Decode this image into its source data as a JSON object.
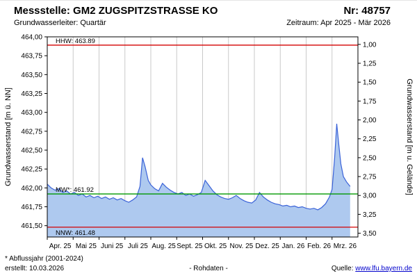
{
  "header": {
    "station": "Messstelle: GM2 ZUGSPITZSTRASSE KO",
    "number": "Nr: 48757",
    "aquifer": "Grundwasserleiter: Quartär",
    "period": "Zeitraum: Apr 2025 - Mär 2026"
  },
  "chart_data": {
    "type": "area",
    "ylabel_left": "Grundwasserstand [m ü. NN]",
    "ylabel_right": "Grundwasserstand [m u. Gelände]",
    "x_tick_labels": [
      "Apr. 25",
      "Mai 25",
      "Juni 25",
      "Juli 25",
      "Aug. 25",
      "Sept. 25",
      "Okt. 25",
      "Nov. 25",
      "Dez. 25",
      "Jan. 26",
      "Feb. 26",
      "Mrz. 26"
    ],
    "x_range_months": [
      0,
      12
    ],
    "y_left_range": [
      461.35,
      464.0
    ],
    "y_left_tick_values": [
      464.0,
      463.75,
      463.5,
      463.25,
      463.0,
      462.75,
      462.5,
      462.25,
      462.0,
      461.75,
      461.5
    ],
    "y_left_tick_labels": [
      "464,00",
      "463,75",
      "463,50",
      "463,25",
      "463,00",
      "462,75",
      "462,50",
      "462,25",
      "462,00",
      "461,75",
      "461,50"
    ],
    "y_right_tick_values": [
      1.0,
      1.25,
      1.5,
      1.75,
      2.0,
      2.25,
      2.5,
      2.75,
      3.0,
      3.25,
      3.5
    ],
    "y_right_tick_labels": [
      "1,00",
      "1,25",
      "1,50",
      "1,75",
      "2,00",
      "2,25",
      "2,50",
      "2,75",
      "3,00",
      "3,25",
      "3,50"
    ],
    "right_axis_ground_ref": 464.9,
    "grid": "vertical-months",
    "grid_color": "#c9c9c9",
    "line_color": "#3a62d8",
    "fill_color": "#aec9ef",
    "reference_lines": [
      {
        "name": "hhw",
        "label": "HHW: 463.89",
        "value": 463.89,
        "color": "#d40000",
        "label_position": "above"
      },
      {
        "name": "mw",
        "label": "MW*: 461.92",
        "value": 461.92,
        "color": "#009900",
        "label_position": "above"
      },
      {
        "name": "nnw",
        "label": "NNW: 461.48",
        "value": 461.48,
        "color": "#d40000",
        "label_position": "below"
      }
    ],
    "series": [
      {
        "name": "Grundwasserstand Rohdaten",
        "points": [
          [
            0.0,
            462.05
          ],
          [
            0.15,
            462.0
          ],
          [
            0.3,
            461.97
          ],
          [
            0.45,
            461.99
          ],
          [
            0.6,
            461.94
          ],
          [
            0.75,
            461.96
          ],
          [
            0.9,
            461.92
          ],
          [
            1.05,
            461.94
          ],
          [
            1.2,
            461.9
          ],
          [
            1.35,
            461.92
          ],
          [
            1.5,
            461.88
          ],
          [
            1.65,
            461.9
          ],
          [
            1.8,
            461.87
          ],
          [
            1.95,
            461.89
          ],
          [
            2.1,
            461.86
          ],
          [
            2.25,
            461.88
          ],
          [
            2.4,
            461.85
          ],
          [
            2.55,
            461.87
          ],
          [
            2.7,
            461.84
          ],
          [
            2.85,
            461.86
          ],
          [
            3.0,
            461.83
          ],
          [
            3.15,
            461.81
          ],
          [
            3.3,
            461.84
          ],
          [
            3.45,
            461.88
          ],
          [
            3.58,
            462.02
          ],
          [
            3.68,
            462.4
          ],
          [
            3.78,
            462.28
          ],
          [
            3.9,
            462.1
          ],
          [
            4.0,
            462.04
          ],
          [
            4.15,
            461.99
          ],
          [
            4.3,
            461.96
          ],
          [
            4.45,
            462.06
          ],
          [
            4.6,
            462.01
          ],
          [
            4.75,
            461.97
          ],
          [
            4.9,
            461.94
          ],
          [
            5.05,
            461.92
          ],
          [
            5.2,
            461.94
          ],
          [
            5.35,
            461.9
          ],
          [
            5.5,
            461.92
          ],
          [
            5.65,
            461.89
          ],
          [
            5.8,
            461.91
          ],
          [
            5.95,
            461.94
          ],
          [
            6.1,
            462.1
          ],
          [
            6.25,
            462.03
          ],
          [
            6.4,
            461.96
          ],
          [
            6.55,
            461.91
          ],
          [
            6.7,
            461.88
          ],
          [
            6.85,
            461.86
          ],
          [
            7.0,
            461.85
          ],
          [
            7.15,
            461.87
          ],
          [
            7.3,
            461.9
          ],
          [
            7.45,
            461.86
          ],
          [
            7.6,
            461.83
          ],
          [
            7.75,
            461.81
          ],
          [
            7.9,
            461.8
          ],
          [
            8.05,
            461.84
          ],
          [
            8.2,
            461.94
          ],
          [
            8.35,
            461.88
          ],
          [
            8.5,
            461.84
          ],
          [
            8.65,
            461.81
          ],
          [
            8.8,
            461.79
          ],
          [
            8.95,
            461.78
          ],
          [
            9.1,
            461.76
          ],
          [
            9.25,
            461.77
          ],
          [
            9.4,
            461.75
          ],
          [
            9.55,
            461.76
          ],
          [
            9.7,
            461.74
          ],
          [
            9.85,
            461.75
          ],
          [
            10.0,
            461.73
          ],
          [
            10.15,
            461.72
          ],
          [
            10.3,
            461.73
          ],
          [
            10.45,
            461.71
          ],
          [
            10.6,
            461.74
          ],
          [
            10.75,
            461.79
          ],
          [
            10.9,
            461.88
          ],
          [
            11.0,
            461.98
          ],
          [
            11.1,
            462.4
          ],
          [
            11.18,
            462.85
          ],
          [
            11.26,
            462.58
          ],
          [
            11.34,
            462.32
          ],
          [
            11.44,
            462.15
          ],
          [
            11.56,
            462.08
          ],
          [
            11.7,
            462.02
          ]
        ]
      }
    ]
  },
  "footer": {
    "note": "* Abflussjahr (2001-2024)",
    "created": "erstellt:  10.03.2026",
    "center_label": "- Rohdaten -",
    "source_label": "Quelle:",
    "source_link": "www.lfu.bayern.de"
  }
}
